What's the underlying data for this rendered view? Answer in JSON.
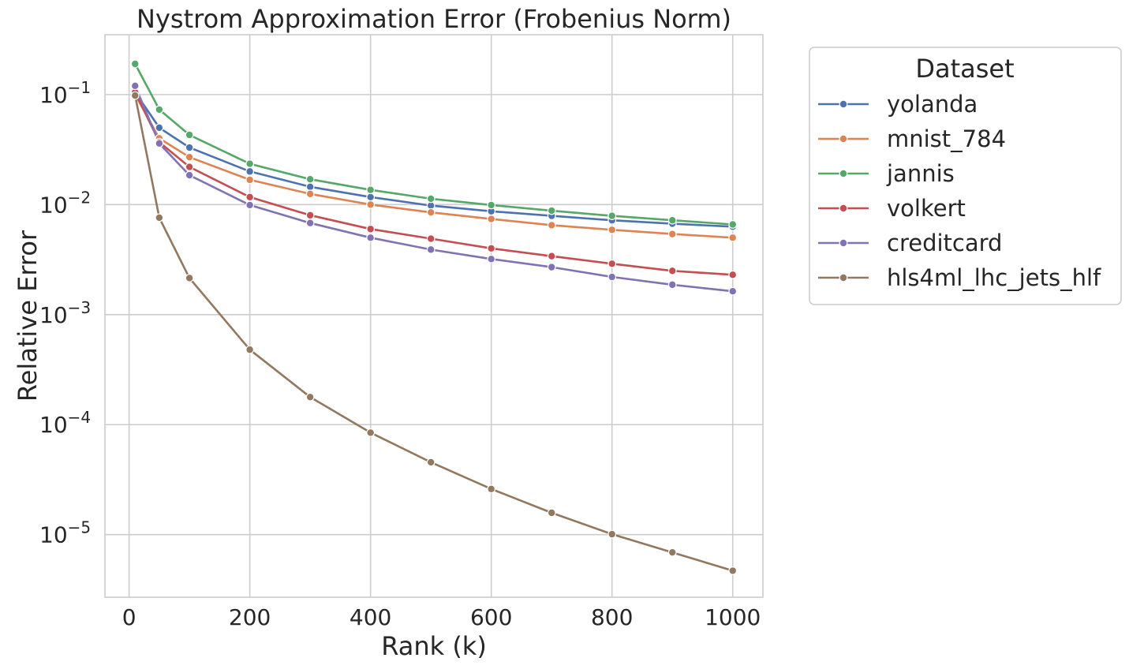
{
  "chart_data": {
    "type": "line",
    "title": "Nystrom Approximation Error (Frobenius Norm)",
    "xlabel": "Rank (k)",
    "ylabel": "Relative Error",
    "x": [
      10,
      50,
      100,
      200,
      300,
      400,
      500,
      600,
      700,
      800,
      900,
      1000
    ],
    "xlim": [
      -40,
      1050
    ],
    "ylim": [
      2.7e-06,
      0.35
    ],
    "yscale": "log",
    "xticks": [
      0,
      200,
      400,
      600,
      800,
      1000
    ],
    "xtick_labels": [
      "0",
      "200",
      "400",
      "600",
      "800",
      "1000"
    ],
    "yticks": [
      {
        "value": 0.1,
        "base": "10",
        "exp": "−1"
      },
      {
        "value": 0.01,
        "base": "10",
        "exp": "−2"
      },
      {
        "value": 0.001,
        "base": "10",
        "exp": "−3"
      },
      {
        "value": 0.0001,
        "base": "10",
        "exp": "−4"
      },
      {
        "value": 1e-05,
        "base": "10",
        "exp": "−5"
      }
    ],
    "grid": true,
    "legend": {
      "title": "Dataset",
      "placement": "outside-right-top"
    },
    "series": [
      {
        "name": "yolanda",
        "color": "#4c72b0",
        "values": [
          0.105,
          0.05,
          0.033,
          0.02,
          0.0145,
          0.0117,
          0.0098,
          0.0087,
          0.0079,
          0.0072,
          0.0067,
          0.0063
        ]
      },
      {
        "name": "mnist_784",
        "color": "#dd8452",
        "values": [
          0.1,
          0.04,
          0.027,
          0.0168,
          0.0125,
          0.01,
          0.0085,
          0.0074,
          0.0065,
          0.0059,
          0.0054,
          0.005
        ]
      },
      {
        "name": "jannis",
        "color": "#55a868",
        "values": [
          0.19,
          0.073,
          0.043,
          0.0235,
          0.017,
          0.0136,
          0.0113,
          0.0099,
          0.0088,
          0.0079,
          0.0072,
          0.0066
        ]
      },
      {
        "name": "volkert",
        "color": "#c44e52",
        "values": [
          0.105,
          0.037,
          0.022,
          0.0117,
          0.008,
          0.006,
          0.0049,
          0.004,
          0.0034,
          0.0029,
          0.0025,
          0.0023
        ]
      },
      {
        "name": "creditcard",
        "color": "#8172b3",
        "values": [
          0.12,
          0.036,
          0.0185,
          0.0099,
          0.0068,
          0.005,
          0.0039,
          0.0032,
          0.0027,
          0.0022,
          0.00187,
          0.00163
        ]
      },
      {
        "name": "hls4ml_lhc_jets_hlf",
        "color": "#937860",
        "values": [
          0.098,
          0.0076,
          0.00215,
          0.00048,
          0.000178,
          8.45e-05,
          4.55e-05,
          2.6e-05,
          1.58e-05,
          1.01e-05,
          6.9e-06,
          4.7e-06
        ]
      }
    ]
  }
}
